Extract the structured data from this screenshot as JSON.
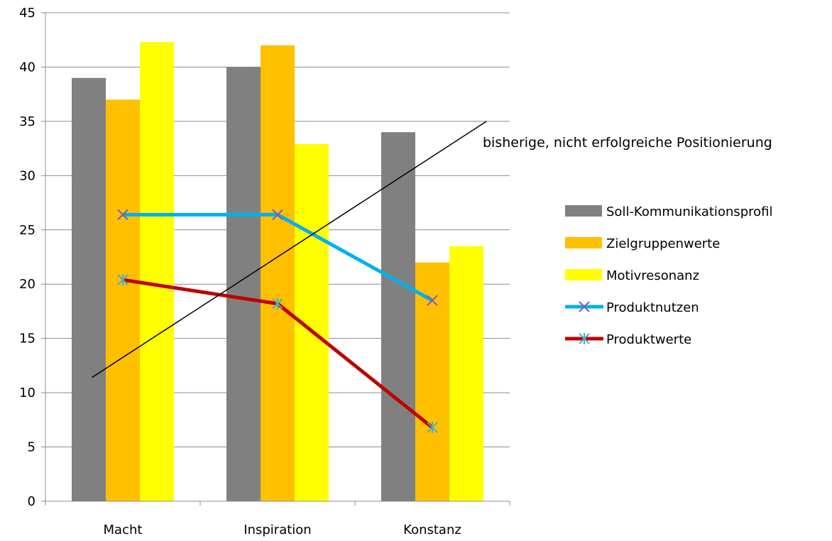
{
  "chart_data": {
    "type": "bar",
    "categories": [
      "Macht",
      "Inspiration",
      "Konstanz"
    ],
    "ylim": [
      0,
      45
    ],
    "yticks": [
      0,
      5,
      10,
      15,
      20,
      25,
      30,
      35,
      40,
      45
    ],
    "grid": true,
    "legend_position": "right",
    "series": [
      {
        "name": "Soll-Kommunikationsprofil",
        "type": "bar",
        "color": "#808080",
        "values": [
          39,
          40,
          34
        ]
      },
      {
        "name": "Zielgruppenwerte",
        "type": "bar",
        "color": "#FFC000",
        "values": [
          37,
          42,
          22
        ]
      },
      {
        "name": "Motivresonanz",
        "type": "bar",
        "color": "#FFFF00",
        "values": [
          42.3,
          32.9,
          23.5
        ]
      },
      {
        "name": "Produktnutzen",
        "type": "line",
        "color": "#00B0F0",
        "marker": "x",
        "marker_color": "#7F5FAF",
        "values": [
          26.4,
          26.4,
          18.5
        ]
      },
      {
        "name": "Produktwerte",
        "type": "line",
        "color": "#C00000",
        "marker": "asterisk",
        "marker_color": "#4BACC6",
        "values": [
          20.4,
          18.2,
          6.8
        ]
      }
    ],
    "annotation": {
      "text": "bisherige, nicht erfolgreiche Positionierung",
      "line_from": {
        "category_pos": -0.2,
        "y": 11.4
      },
      "line_to": {
        "category_pos": 2.35,
        "y": 35
      }
    }
  }
}
